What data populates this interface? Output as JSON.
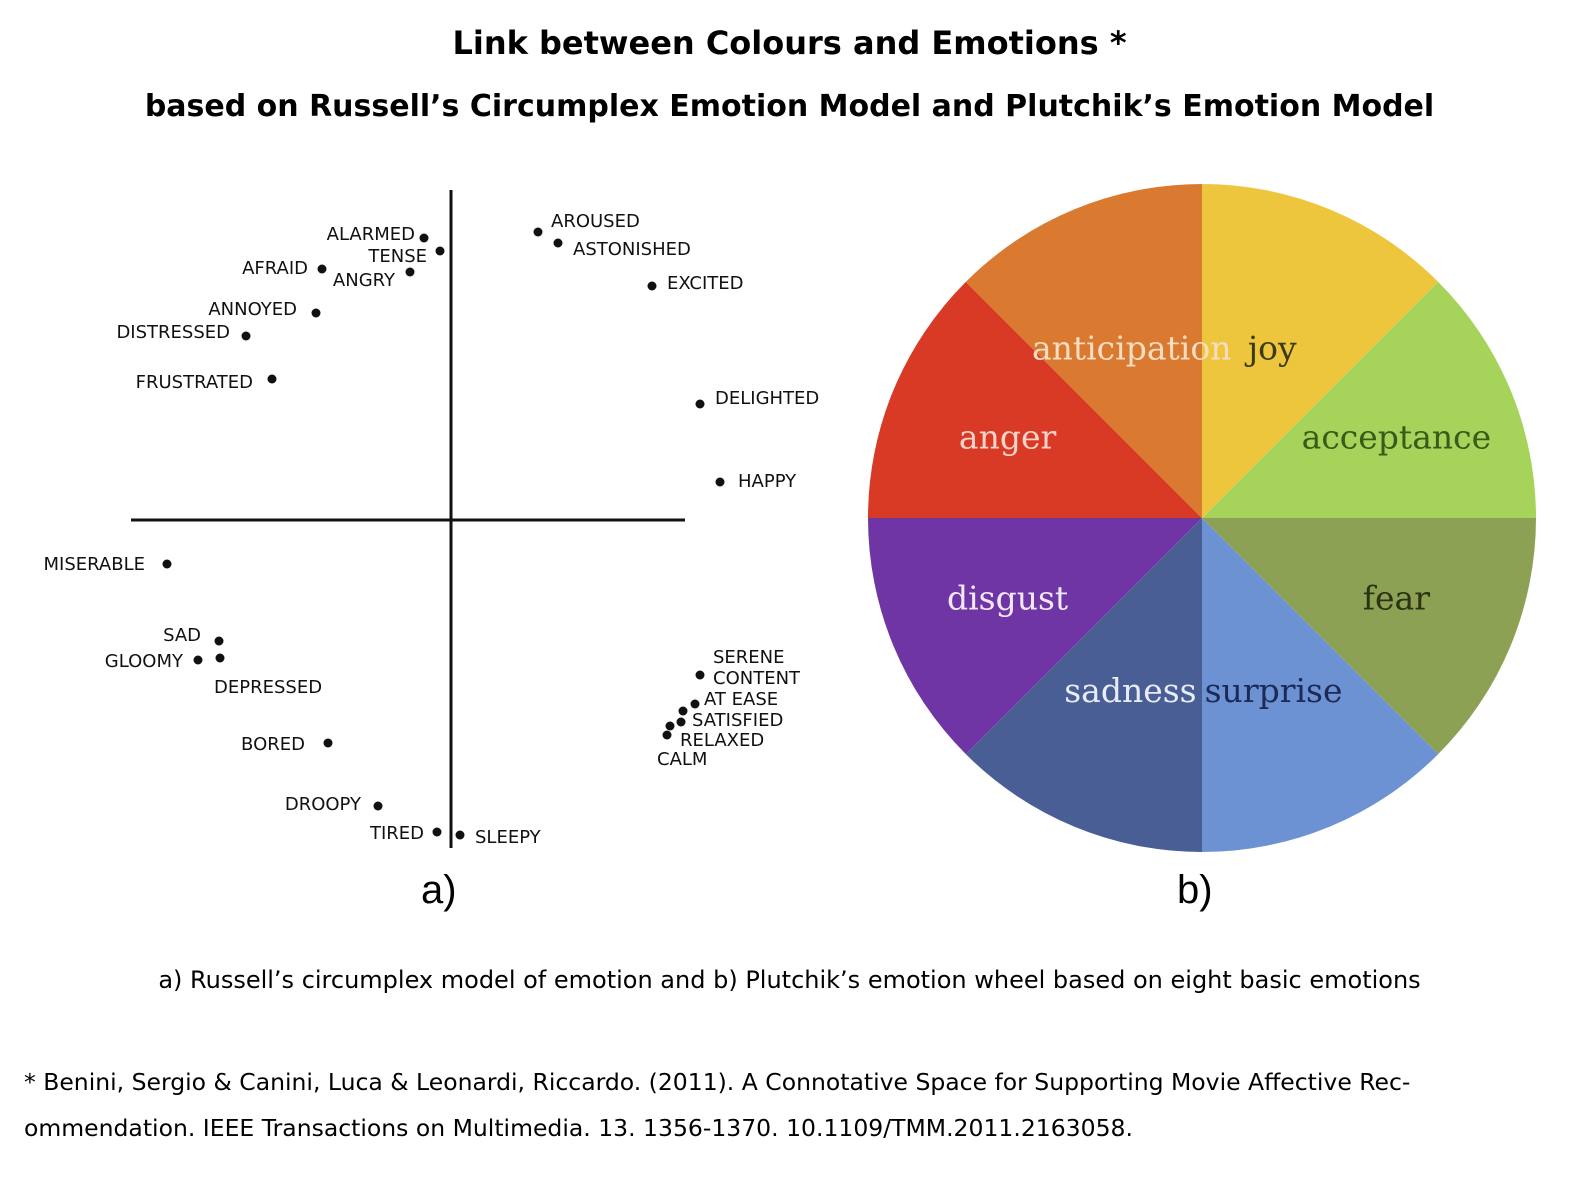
{
  "title": "Link between Colours and Emotions *",
  "subtitle": "based on Russell’s Circumplex Emotion Model and Plutchik’s Emotion Model",
  "panel_a": {
    "label": "a)",
    "emotions": [
      "ALARMED",
      "TENSE",
      "AFRAID",
      "ANGRY",
      "ANNOYED",
      "DISTRESSED",
      "FRUSTRATED",
      "AROUSED",
      "ASTONISHED",
      "EXCITED",
      "DELIGHTED",
      "HAPPY",
      "MISERABLE",
      "SAD",
      "GLOOMY",
      "DEPRESSED",
      "BORED",
      "DROOPY",
      "TIRED",
      "SLEEPY",
      "SERENE",
      "CONTENT",
      "AT EASE",
      "SATISFIED",
      "RELAXED",
      "CALM"
    ]
  },
  "panel_b": {
    "label": "b)",
    "segments": [
      {
        "label": "joy",
        "color": "#eec63e",
        "text_color": "#3b3b1a"
      },
      {
        "label": "acceptance",
        "color": "#a6d35a",
        "text_color": "#3a5a1a"
      },
      {
        "label": "fear",
        "color": "#8da155",
        "text_color": "#2b3312"
      },
      {
        "label": "surprise",
        "color": "#6d92d4",
        "text_color": "#1c2a55"
      },
      {
        "label": "sadness",
        "color": "#4a5e96",
        "text_color": "#e8ecf5"
      },
      {
        "label": "disgust",
        "color": "#7035a4",
        "text_color": "#f1e8f7"
      },
      {
        "label": "anger",
        "color": "#d93a26",
        "text_color": "#f6d3c8"
      },
      {
        "label": "anticipation",
        "color": "#da7a30",
        "text_color": "#f7dcc4"
      }
    ]
  },
  "caption": "a) Russell’s circumplex model of emotion and b) Plutchik’s emotion wheel based on eight basic emotions",
  "reference_line1": "* Benini, Sergio & Canini, Luca & Leonardi, Riccardo. (2011). A Connotative Space for Supporting Movie Affective Rec-",
  "reference_line2": "ommendation. IEEE Transactions on Multimedia. 13. 1356-1370. 10.1109/TMM.2011.2163058."
}
